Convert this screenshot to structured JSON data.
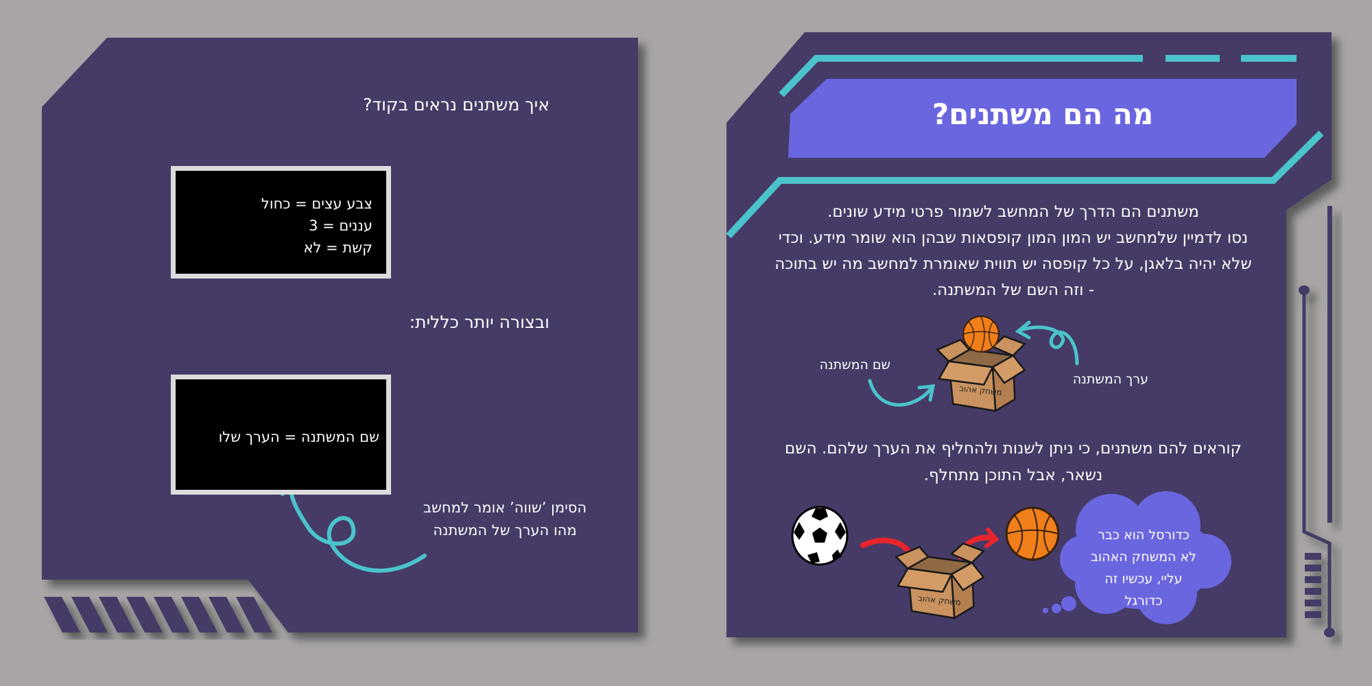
{
  "colors": {
    "background": "#a9a5a6",
    "panel": "#453a66",
    "accent_cyan": "#4bc3cb",
    "banner": "#6a66e0",
    "arrow_red": "#e8242c"
  },
  "left_panel": {
    "heading": "איך משתנים נראים בקוד?",
    "code_example_lines": [
      "צבע עצים = כחול",
      "עננים = 3",
      "קשת = לא"
    ],
    "general_heading": "ובצורה יותר כללית:",
    "general_code": "שם המשתנה = הערך שלו",
    "annotation_lines": [
      "הסימן ’שווה’ אומר למחשב",
      "מהו הערך של המשתנה"
    ]
  },
  "right_panel": {
    "title": "מה הם משתנים?",
    "intro_lines": [
      "משתנים הם הדרך של המחשב לשמור פרטי מידע שונים.",
      "נסו לדמיין שלמחשב יש המון המון קופסאות שבהן הוא שומר מידע. וכדי",
      "שלא יהיה בלאגן, על כל קופסה יש תווית שאומרת למחשב מה יש בתוכה",
      "- וזה השם של המשתנה."
    ],
    "label_variable_name": "שם המשתנה",
    "label_variable_value": "ערך המשתנה",
    "box_label": "משחק אהוב",
    "change_lines": [
      "קוראים להם משתנים, כי ניתן לשנות ולהחליף את הערך שלהם. השם",
      "נשאר, אבל התוכן מתחלף."
    ],
    "thought_lines": [
      "כדורסל הוא כבר",
      "לא המשחק האהוב",
      "עליי, עכשיו זה",
      "כדורגל"
    ]
  }
}
